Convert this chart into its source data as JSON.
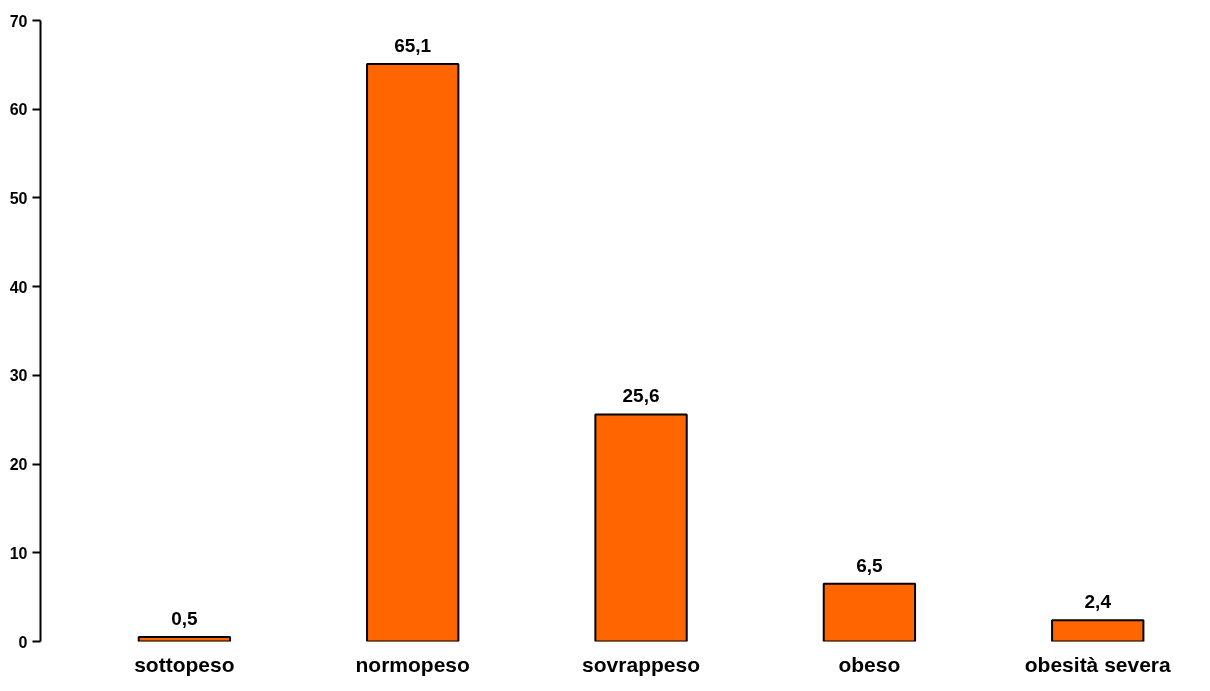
{
  "chart_data": {
    "type": "bar",
    "categories": [
      "sottopeso",
      "normopeso",
      "sovrappeso",
      "obeso",
      "obesità severa"
    ],
    "values": [
      0.5,
      65.1,
      25.6,
      6.5,
      2.4
    ],
    "value_labels": [
      "0,5",
      "65,1",
      "25,6",
      "6,5",
      "2,4"
    ],
    "color": "#ff6600",
    "ylim": [
      0,
      70
    ],
    "yticks": [
      0,
      10,
      20,
      30,
      40,
      50,
      60,
      70
    ],
    "grid": false
  }
}
